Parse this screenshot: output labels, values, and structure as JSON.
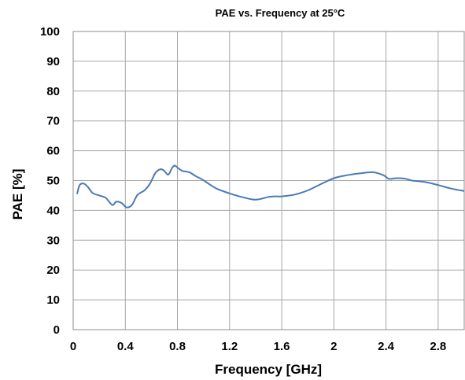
{
  "chart_data": {
    "type": "line",
    "title": "PAE vs. Frequency at 25°C",
    "xlabel": "Frequency [GHz]",
    "ylabel": "PAE [%]",
    "xlim": [
      0,
      3.0
    ],
    "ylim": [
      0,
      100
    ],
    "x_ticks": [
      0,
      0.4,
      0.8,
      1.2,
      1.6,
      2,
      2.4,
      2.8
    ],
    "x_tick_labels": [
      "0",
      "0.4",
      "0.8",
      "1.2",
      "1.6",
      "2",
      "2.4",
      "2.8"
    ],
    "y_ticks": [
      0,
      10,
      20,
      30,
      40,
      50,
      60,
      70,
      80,
      90,
      100
    ],
    "y_tick_labels": [
      "0",
      "10",
      "20",
      "30",
      "40",
      "50",
      "60",
      "70",
      "80",
      "90",
      "100"
    ],
    "grid": true,
    "legend": "none",
    "series": [
      {
        "color": "#4a7ab5",
        "x": [
          0.03,
          0.05,
          0.08,
          0.11,
          0.15,
          0.2,
          0.25,
          0.3,
          0.33,
          0.37,
          0.41,
          0.45,
          0.49,
          0.52,
          0.55,
          0.59,
          0.63,
          0.67,
          0.7,
          0.73,
          0.76,
          0.78,
          0.81,
          0.84,
          0.87,
          0.9,
          0.94,
          0.98,
          1.02,
          1.1,
          1.2,
          1.3,
          1.4,
          1.5,
          1.55,
          1.6,
          1.7,
          1.8,
          1.9,
          2.0,
          2.1,
          2.2,
          2.3,
          2.38,
          2.42,
          2.46,
          2.5,
          2.55,
          2.6,
          2.7,
          2.8,
          2.9,
          3.0
        ],
        "y": [
          45.5,
          48.5,
          49.0,
          48.0,
          45.8,
          45.0,
          44.2,
          41.8,
          42.9,
          42.5,
          41.0,
          41.8,
          45.0,
          46.0,
          46.8,
          49.0,
          52.5,
          53.8,
          53.2,
          52.0,
          54.3,
          55.0,
          54.0,
          53.2,
          53.0,
          52.6,
          51.5,
          50.6,
          49.5,
          47.3,
          45.7,
          44.4,
          43.6,
          44.5,
          44.7,
          44.7,
          45.3,
          46.7,
          48.8,
          50.8,
          51.8,
          52.4,
          52.8,
          51.8,
          50.6,
          50.7,
          50.8,
          50.6,
          50.0,
          49.5,
          48.5,
          47.3,
          46.5
        ]
      }
    ]
  }
}
